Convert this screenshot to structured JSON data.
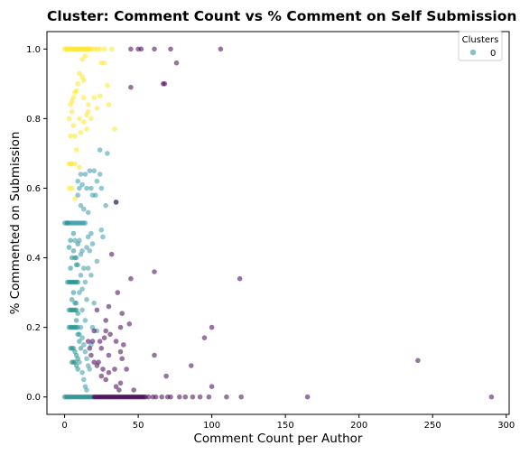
{
  "chart_data": {
    "type": "scatter",
    "title": "Cluster: Comment Count vs % Comment on Self Submission",
    "xlabel": "Comment Count per Author",
    "ylabel": "% Commented on Submission",
    "xlim": [
      -12,
      302
    ],
    "ylim": [
      -0.05,
      1.05
    ],
    "xticks": [
      0,
      50,
      100,
      150,
      200,
      250,
      300
    ],
    "yticks": [
      0.0,
      0.2,
      0.4,
      0.6,
      0.8,
      1.0
    ],
    "xtick_labels": [
      "0",
      "50",
      "100",
      "150",
      "200",
      "250",
      "300"
    ],
    "ytick_labels": [
      "0.0",
      "0.2",
      "0.4",
      "0.6",
      "0.8",
      "1.0"
    ],
    "grid": false,
    "legend": {
      "title": "Clusters",
      "placement": "top-right",
      "entries": [
        {
          "label": "0",
          "color": "#21908d"
        }
      ]
    },
    "marker_alpha": 0.55,
    "series": [
      {
        "color": "#fde725",
        "points": [
          [
            0,
            1.0
          ],
          [
            1,
            1.0
          ],
          [
            2,
            1.0
          ],
          [
            3,
            1.0
          ],
          [
            4,
            1.0
          ],
          [
            5,
            1.0
          ],
          [
            6,
            1.0
          ],
          [
            7,
            1.0
          ],
          [
            8,
            1.0
          ],
          [
            9,
            1.0
          ],
          [
            10,
            1.0
          ],
          [
            11,
            1.0
          ],
          [
            12,
            1.0
          ],
          [
            13,
            1.0
          ],
          [
            14,
            1.0
          ],
          [
            15,
            1.0
          ],
          [
            16,
            1.0
          ],
          [
            17,
            1.0
          ],
          [
            18,
            1.0
          ],
          [
            20,
            1.0
          ],
          [
            22,
            1.0
          ],
          [
            24,
            1.0
          ],
          [
            27,
            1.0
          ],
          [
            32,
            1.0
          ],
          [
            14,
            0.98
          ],
          [
            12,
            0.97
          ],
          [
            25,
            0.96
          ],
          [
            27,
            0.96
          ],
          [
            10,
            0.93
          ],
          [
            12,
            0.92
          ],
          [
            13,
            0.91
          ],
          [
            9,
            0.9
          ],
          [
            8,
            0.88
          ],
          [
            6,
            0.86
          ],
          [
            5,
            0.85
          ],
          [
            4,
            0.84
          ],
          [
            7,
            0.875
          ],
          [
            29,
            0.895
          ],
          [
            24,
            0.865
          ],
          [
            13,
            0.86
          ],
          [
            22,
            0.83
          ],
          [
            16,
            0.82
          ],
          [
            15,
            0.81
          ],
          [
            18,
            0.8
          ],
          [
            10,
            0.8
          ],
          [
            30,
            0.84
          ],
          [
            3,
            0.8
          ],
          [
            4,
            0.75
          ],
          [
            7,
            0.75
          ],
          [
            11,
            0.76
          ],
          [
            8,
            0.71
          ],
          [
            4,
            0.67
          ],
          [
            3,
            0.67
          ],
          [
            5,
            0.67
          ],
          [
            7,
            0.67
          ],
          [
            3,
            0.6
          ],
          [
            5,
            0.6
          ],
          [
            7,
            0.57
          ],
          [
            10,
            0.66
          ],
          [
            13,
            0.79
          ],
          [
            15,
            0.77
          ],
          [
            34,
            0.77
          ],
          [
            16,
            0.84
          ],
          [
            20,
            0.86
          ],
          [
            5,
            0.82
          ],
          [
            6,
            0.78
          ]
        ]
      },
      {
        "color": "#3b9aac",
        "points": [
          [
            24,
            0.71
          ],
          [
            29,
            0.7
          ],
          [
            20,
            0.65
          ],
          [
            17,
            0.65
          ],
          [
            14,
            0.64
          ],
          [
            11,
            0.64
          ],
          [
            9,
            0.62
          ],
          [
            12,
            0.61
          ],
          [
            15,
            0.6
          ],
          [
            18,
            0.6
          ],
          [
            25,
            0.6
          ],
          [
            21,
            0.58
          ],
          [
            28,
            0.55
          ],
          [
            35,
            0.56
          ],
          [
            9,
            0.58
          ],
          [
            11,
            0.55
          ],
          [
            13,
            0.54
          ],
          [
            16,
            0.53
          ],
          [
            19,
            0.58
          ],
          [
            22,
            0.62
          ],
          [
            24,
            0.64
          ],
          [
            10,
            0.6
          ],
          [
            0,
            0.5
          ],
          [
            1,
            0.5
          ],
          [
            2,
            0.5
          ],
          [
            3,
            0.5
          ],
          [
            4,
            0.5
          ],
          [
            5,
            0.5
          ],
          [
            6,
            0.5
          ],
          [
            7,
            0.5
          ],
          [
            8,
            0.5
          ],
          [
            9,
            0.5
          ],
          [
            10,
            0.5
          ],
          [
            11,
            0.5
          ],
          [
            12,
            0.5
          ],
          [
            13,
            0.5
          ],
          [
            14,
            0.5
          ],
          [
            25,
            0.48
          ],
          [
            18,
            0.47
          ],
          [
            16,
            0.46
          ],
          [
            19,
            0.44
          ],
          [
            15,
            0.43
          ],
          [
            10,
            0.45
          ],
          [
            12,
            0.42
          ],
          [
            11,
            0.41
          ],
          [
            9,
            0.38
          ],
          [
            13,
            0.37
          ],
          [
            16,
            0.37
          ],
          [
            22,
            0.39
          ],
          [
            18,
            0.35
          ],
          [
            14,
            0.33
          ],
          [
            12,
            0.31
          ],
          [
            10,
            0.3
          ],
          [
            8,
            0.27
          ],
          [
            12,
            0.25
          ],
          [
            14,
            0.22
          ],
          [
            11,
            0.2
          ],
          [
            10,
            0.18
          ],
          [
            12,
            0.17
          ],
          [
            13,
            0.15
          ],
          [
            14,
            0.13
          ],
          [
            15,
            0.11
          ],
          [
            16,
            0.09
          ],
          [
            17,
            0.08
          ],
          [
            18,
            0.15
          ],
          [
            19,
            0.2
          ],
          [
            22,
            0.19
          ],
          [
            20,
            0.27
          ],
          [
            15,
            0.28
          ],
          [
            11,
            0.35
          ],
          [
            17,
            0.42
          ],
          [
            26,
            0.46
          ],
          [
            7,
            0.45
          ],
          [
            8,
            0.4
          ],
          [
            9,
            0.2
          ],
          [
            10,
            0.1
          ],
          [
            12,
            0.07
          ],
          [
            13,
            0.05
          ],
          [
            14,
            0.03
          ],
          [
            15,
            0.02
          ]
        ]
      },
      {
        "color": "#21908d",
        "points": [
          [
            0,
            0.0
          ],
          [
            1,
            0.0
          ],
          [
            2,
            0.0
          ],
          [
            3,
            0.0
          ],
          [
            4,
            0.0
          ],
          [
            5,
            0.0
          ],
          [
            6,
            0.0
          ],
          [
            7,
            0.0
          ],
          [
            8,
            0.0
          ],
          [
            9,
            0.0
          ],
          [
            10,
            0.0
          ],
          [
            11,
            0.0
          ],
          [
            12,
            0.0
          ],
          [
            13,
            0.0
          ],
          [
            14,
            0.0
          ],
          [
            15,
            0.0
          ],
          [
            16,
            0.0
          ],
          [
            17,
            0.0
          ],
          [
            18,
            0.0
          ],
          [
            19,
            0.0
          ],
          [
            2,
            0.5
          ],
          [
            3,
            0.43
          ],
          [
            4,
            0.45
          ],
          [
            5,
            0.4
          ],
          [
            6,
            0.42
          ],
          [
            7,
            0.4
          ],
          [
            8,
            0.38
          ],
          [
            2,
            0.33
          ],
          [
            3,
            0.33
          ],
          [
            4,
            0.33
          ],
          [
            5,
            0.33
          ],
          [
            6,
            0.33
          ],
          [
            7,
            0.33
          ],
          [
            8,
            0.33
          ],
          [
            9,
            0.33
          ],
          [
            3,
            0.25
          ],
          [
            4,
            0.25
          ],
          [
            5,
            0.25
          ],
          [
            6,
            0.25
          ],
          [
            7,
            0.25
          ],
          [
            8,
            0.25
          ],
          [
            9,
            0.24
          ],
          [
            3,
            0.2
          ],
          [
            4,
            0.2
          ],
          [
            5,
            0.2
          ],
          [
            6,
            0.2
          ],
          [
            7,
            0.2
          ],
          [
            8,
            0.2
          ],
          [
            4,
            0.14
          ],
          [
            5,
            0.14
          ],
          [
            6,
            0.14
          ],
          [
            7,
            0.13
          ],
          [
            8,
            0.12
          ],
          [
            9,
            0.11
          ],
          [
            5,
            0.1
          ],
          [
            6,
            0.1
          ],
          [
            7,
            0.1
          ],
          [
            8,
            0.09
          ],
          [
            9,
            0.08
          ],
          [
            6,
            0.3
          ],
          [
            5,
            0.28
          ],
          [
            7,
            0.27
          ],
          [
            8,
            0.22
          ],
          [
            9,
            0.18
          ],
          [
            10,
            0.16
          ],
          [
            11,
            0.14
          ],
          [
            6,
            0.47
          ],
          [
            9,
            0.44
          ],
          [
            4,
            0.37
          ]
        ]
      },
      {
        "color": "#440154",
        "points": [
          [
            45,
            1.0
          ],
          [
            50,
            1.0
          ],
          [
            52,
            1.0
          ],
          [
            61,
            1.0
          ],
          [
            72,
            1.0
          ],
          [
            106,
            1.0
          ],
          [
            76,
            0.96
          ],
          [
            67,
            0.9
          ],
          [
            68,
            0.9
          ],
          [
            45,
            0.89
          ],
          [
            35,
            0.56
          ],
          [
            32,
            0.41
          ],
          [
            45,
            0.34
          ],
          [
            61,
            0.36
          ],
          [
            119,
            0.34
          ],
          [
            36,
            0.3
          ],
          [
            39,
            0.24
          ],
          [
            30,
            0.26
          ],
          [
            44,
            0.21
          ],
          [
            28,
            0.22
          ],
          [
            22,
            0.25
          ],
          [
            38,
            0.2
          ],
          [
            28,
            0.19
          ],
          [
            27,
            0.17
          ],
          [
            19,
            0.16
          ],
          [
            25,
            0.14
          ],
          [
            30,
            0.12
          ],
          [
            38,
            0.13
          ],
          [
            40,
            0.15
          ],
          [
            39,
            0.11
          ],
          [
            100,
            0.2
          ],
          [
            95,
            0.17
          ],
          [
            23,
            0.1
          ],
          [
            26,
            0.08
          ],
          [
            30,
            0.07
          ],
          [
            34,
            0.08
          ],
          [
            28,
            0.05
          ],
          [
            35,
            0.03
          ],
          [
            38,
            0.04
          ],
          [
            37,
            0.02
          ],
          [
            47,
            0.02
          ],
          [
            25,
            0.06
          ],
          [
            22,
            0.09
          ],
          [
            20,
            0.1
          ],
          [
            18,
            0.12
          ],
          [
            17,
            0.14
          ],
          [
            16,
            0.16
          ],
          [
            20,
            0.19
          ],
          [
            24,
            0.16
          ],
          [
            31,
            0.18
          ],
          [
            35,
            0.16
          ],
          [
            42,
            0.08
          ],
          [
            61,
            0.12
          ],
          [
            69,
            0.06
          ],
          [
            86,
            0.09
          ],
          [
            100,
            0.03
          ],
          [
            240,
            0.105
          ],
          [
            20,
            0.0
          ],
          [
            21,
            0.0
          ],
          [
            22,
            0.0
          ],
          [
            23,
            0.0
          ],
          [
            24,
            0.0
          ],
          [
            25,
            0.0
          ],
          [
            26,
            0.0
          ],
          [
            27,
            0.0
          ],
          [
            28,
            0.0
          ],
          [
            29,
            0.0
          ],
          [
            30,
            0.0
          ],
          [
            31,
            0.0
          ],
          [
            32,
            0.0
          ],
          [
            33,
            0.0
          ],
          [
            34,
            0.0
          ],
          [
            35,
            0.0
          ],
          [
            36,
            0.0
          ],
          [
            37,
            0.0
          ],
          [
            38,
            0.0
          ],
          [
            39,
            0.0
          ],
          [
            40,
            0.0
          ],
          [
            41,
            0.0
          ],
          [
            42,
            0.0
          ],
          [
            43,
            0.0
          ],
          [
            44,
            0.0
          ],
          [
            45,
            0.0
          ],
          [
            46,
            0.0
          ],
          [
            47,
            0.0
          ],
          [
            48,
            0.0
          ],
          [
            49,
            0.0
          ],
          [
            50,
            0.0
          ],
          [
            51,
            0.0
          ],
          [
            52,
            0.0
          ],
          [
            53,
            0.0
          ],
          [
            54,
            0.0
          ],
          [
            55,
            0.0
          ],
          [
            57,
            0.0
          ],
          [
            60,
            0.0
          ],
          [
            62,
            0.0
          ],
          [
            66,
            0.0
          ],
          [
            70,
            0.0
          ],
          [
            72,
            0.0
          ],
          [
            78,
            0.0
          ],
          [
            82,
            0.0
          ],
          [
            87,
            0.0
          ],
          [
            92,
            0.0
          ],
          [
            98,
            0.0
          ],
          [
            110,
            0.0
          ],
          [
            120,
            0.0
          ],
          [
            165,
            0.0
          ],
          [
            290,
            0.0
          ]
        ]
      }
    ]
  }
}
